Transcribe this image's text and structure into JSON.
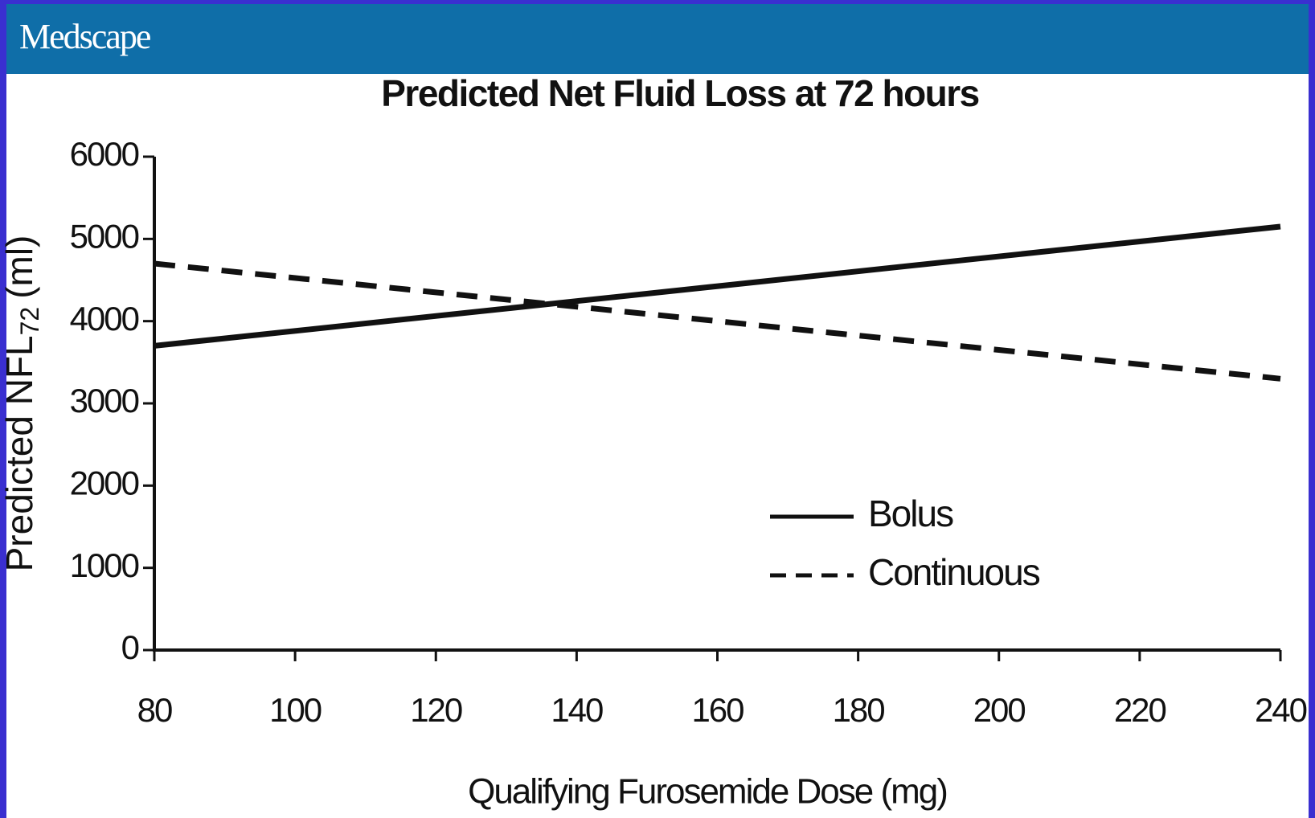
{
  "header": {
    "brand": "Medscape"
  },
  "chart_data": {
    "type": "line",
    "title": "Predicted Net Fluid Loss at 72 hours",
    "xlabel": "Qualifying Furosemide Dose (mg)",
    "ylabel": {
      "main": "Predicted NFL",
      "subscript": "72",
      "unit": "(ml)"
    },
    "x": [
      80,
      240
    ],
    "series": [
      {
        "name": "Bolus",
        "color": "#111111",
        "dash": false,
        "values": [
          3700,
          5150
        ]
      },
      {
        "name": "Continuous",
        "color": "#111111",
        "dash": true,
        "values": [
          4700,
          3300
        ]
      }
    ],
    "xlim": [
      80,
      240
    ],
    "xticks": [
      80,
      100,
      120,
      140,
      160,
      180,
      200,
      220,
      240
    ],
    "ylim": [
      0,
      6000
    ],
    "yticks": [
      0,
      1000,
      2000,
      3000,
      4000,
      5000,
      6000
    ],
    "grid": false,
    "legend": "lower-right"
  }
}
